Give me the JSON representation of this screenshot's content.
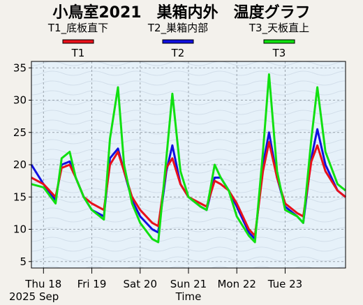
{
  "chart_data": {
    "type": "line",
    "title": "小鳥室2021　巣箱内外　温度グラフ",
    "legend_placement": "top",
    "legend": [
      {
        "header": "T1_底板直下",
        "key": "T1",
        "color": "#e8101a"
      },
      {
        "header": "T2_巣箱内部",
        "key": "T2",
        "color": "#1010e0"
      },
      {
        "header": "T3_天板直上",
        "key": "T3",
        "color": "#10e010"
      }
    ],
    "xlabel": "Time",
    "date_label": "2025 Sep",
    "x_ticks": [
      "Thu 18",
      "Fri 19",
      "Sat 20",
      "Sun 21",
      "Mon 22",
      "Tue 23"
    ],
    "x_range": [
      "2025-09-17T18:00",
      "2025-09-24T06:00"
    ],
    "ylim": [
      4,
      36
    ],
    "y_ticks": [
      5,
      10,
      15,
      20,
      25,
      30,
      35
    ],
    "grid": true,
    "series": [
      {
        "name": "T1",
        "color": "#e8101a",
        "x": [
          "2025-09-17T18:00",
          "2025-09-18T00:00",
          "2025-09-18T06:00",
          "2025-09-18T09:00",
          "2025-09-18T13:00",
          "2025-09-18T16:00",
          "2025-09-18T20:00",
          "2025-09-19T00:00",
          "2025-09-19T06:00",
          "2025-09-19T09:00",
          "2025-09-19T13:00",
          "2025-09-19T16:00",
          "2025-09-19T20:00",
          "2025-09-20T00:00",
          "2025-09-20T06:00",
          "2025-09-20T09:00",
          "2025-09-20T13:00",
          "2025-09-20T16:00",
          "2025-09-20T20:00",
          "2025-09-21T00:00",
          "2025-09-21T06:00",
          "2025-09-21T09:00",
          "2025-09-21T13:00",
          "2025-09-21T16:00",
          "2025-09-21T20:00",
          "2025-09-22T00:00",
          "2025-09-22T06:00",
          "2025-09-22T09:00",
          "2025-09-22T13:00",
          "2025-09-22T16:00",
          "2025-09-22T20:00",
          "2025-09-23T00:00",
          "2025-09-23T06:00",
          "2025-09-23T09:00",
          "2025-09-23T13:00",
          "2025-09-23T16:00",
          "2025-09-23T20:00",
          "2025-09-24T02:00",
          "2025-09-24T06:00"
        ],
        "y": [
          18,
          17,
          15,
          19.5,
          20,
          18,
          15,
          14,
          13,
          20,
          22,
          19,
          15,
          13,
          11,
          10.5,
          19.5,
          21,
          17,
          15,
          14,
          13.5,
          17.5,
          17,
          16,
          14,
          10,
          9,
          19,
          23.5,
          18,
          14,
          12.5,
          12,
          20.5,
          23,
          19,
          16,
          15
        ]
      },
      {
        "name": "T2",
        "color": "#1010e0",
        "x": [
          "2025-09-17T18:00",
          "2025-09-18T00:00",
          "2025-09-18T06:00",
          "2025-09-18T09:00",
          "2025-09-18T13:00",
          "2025-09-18T16:00",
          "2025-09-18T20:00",
          "2025-09-19T00:00",
          "2025-09-19T06:00",
          "2025-09-19T09:00",
          "2025-09-19T13:00",
          "2025-09-19T16:00",
          "2025-09-19T20:00",
          "2025-09-20T00:00",
          "2025-09-20T06:00",
          "2025-09-20T09:00",
          "2025-09-20T13:00",
          "2025-09-20T16:00",
          "2025-09-20T20:00",
          "2025-09-21T00:00",
          "2025-09-21T06:00",
          "2025-09-21T09:00",
          "2025-09-21T13:00",
          "2025-09-21T16:00",
          "2025-09-21T20:00",
          "2025-09-22T00:00",
          "2025-09-22T06:00",
          "2025-09-22T09:00",
          "2025-09-22T13:00",
          "2025-09-22T16:00",
          "2025-09-22T20:00",
          "2025-09-23T00:00",
          "2025-09-23T06:00",
          "2025-09-23T09:00",
          "2025-09-23T13:00",
          "2025-09-23T16:00",
          "2025-09-23T20:00",
          "2025-09-24T02:00",
          "2025-09-24T06:00"
        ],
        "y": [
          20,
          17,
          14.5,
          20,
          20.5,
          18,
          15,
          13,
          12,
          21,
          22.5,
          19,
          14.5,
          12,
          10,
          9.5,
          19,
          23,
          17,
          15,
          13.5,
          13,
          18,
          18,
          16,
          13.5,
          9.5,
          8.5,
          20,
          25,
          18,
          13.5,
          12,
          11,
          21,
          25.5,
          20,
          16,
          15
        ]
      },
      {
        "name": "T3",
        "color": "#10e010",
        "x": [
          "2025-09-17T18:00",
          "2025-09-18T00:00",
          "2025-09-18T06:00",
          "2025-09-18T09:00",
          "2025-09-18T13:00",
          "2025-09-18T16:00",
          "2025-09-18T20:00",
          "2025-09-19T00:00",
          "2025-09-19T06:00",
          "2025-09-19T09:00",
          "2025-09-19T13:00",
          "2025-09-19T16:00",
          "2025-09-19T20:00",
          "2025-09-20T00:00",
          "2025-09-20T06:00",
          "2025-09-20T09:00",
          "2025-09-20T13:00",
          "2025-09-20T16:00",
          "2025-09-20T20:00",
          "2025-09-21T00:00",
          "2025-09-21T06:00",
          "2025-09-21T09:00",
          "2025-09-21T13:00",
          "2025-09-21T16:00",
          "2025-09-21T20:00",
          "2025-09-22T00:00",
          "2025-09-22T06:00",
          "2025-09-22T09:00",
          "2025-09-22T13:00",
          "2025-09-22T16:00",
          "2025-09-22T20:00",
          "2025-09-23T00:00",
          "2025-09-23T06:00",
          "2025-09-23T09:00",
          "2025-09-23T13:00",
          "2025-09-23T16:00",
          "2025-09-23T20:00",
          "2025-09-24T02:00",
          "2025-09-24T06:00"
        ],
        "y": [
          17,
          16.5,
          14,
          21,
          22,
          18,
          15,
          13,
          11.5,
          24,
          32,
          20,
          14,
          11,
          8.5,
          8,
          21,
          31,
          19,
          15,
          13.5,
          13,
          20,
          18,
          16,
          12,
          9,
          8,
          22,
          34,
          19,
          13,
          12,
          11,
          24,
          32,
          22,
          17,
          16
        ]
      }
    ]
  }
}
